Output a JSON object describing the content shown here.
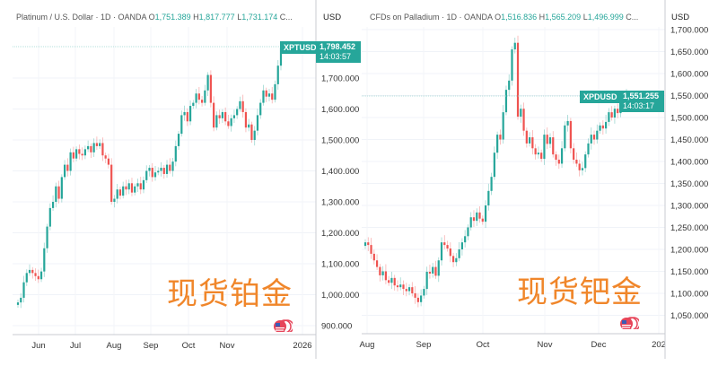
{
  "colors": {
    "up": "#26a69a",
    "down": "#ef5350",
    "price_line": "#9fd8d2",
    "overlay_text": "#f0862a"
  },
  "chart_data": [
    {
      "type": "candlestick",
      "header": {
        "symbol": "Platinum / U.S. Dollar · 1D · OANDA",
        "o_label": "O",
        "open": "1,751.389",
        "h_label": "H",
        "high": "1,817.777",
        "l_label": "L",
        "low": "1,731.174",
        "c_label": "C..."
      },
      "currency": "USD",
      "ticker": "XPTUSD",
      "last_price": "1,798.452",
      "countdown": "14:03:57",
      "overlay_text": "现货铂金",
      "y_ticks": [
        "1,700.000",
        "1,600.000",
        "1,500.000",
        "1,400.000",
        "1,300.000",
        "1,200.000",
        "1,100.000",
        "1,000.000",
        "900.000"
      ],
      "y_tick_values": [
        1700,
        1600,
        1500,
        1400,
        1300,
        1200,
        1100,
        1000,
        900
      ],
      "x_ticks": [
        "Jun",
        "Jul",
        "Aug",
        "Sep",
        "Oct",
        "Nov",
        "2026"
      ],
      "closes": [
        975,
        990,
        1040,
        1070,
        1080,
        1070,
        1060,
        1050,
        1075,
        1150,
        1220,
        1280,
        1300,
        1350,
        1310,
        1380,
        1420,
        1400,
        1460,
        1440,
        1470,
        1455,
        1450,
        1470,
        1480,
        1460,
        1490,
        1480,
        1490,
        1450,
        1440,
        1420,
        1300,
        1310,
        1340,
        1320,
        1350,
        1340,
        1360,
        1330,
        1350,
        1360,
        1340,
        1370,
        1400,
        1410,
        1380,
        1395,
        1400,
        1410,
        1390,
        1420,
        1400,
        1430,
        1480,
        1520,
        1580,
        1590,
        1560,
        1610,
        1620,
        1650,
        1630,
        1620,
        1660,
        1710,
        1620,
        1540,
        1580,
        1570,
        1590,
        1560,
        1545,
        1570,
        1580,
        1600,
        1625,
        1590,
        1540,
        1550,
        1500,
        1530,
        1580,
        1620,
        1660,
        1640,
        1650,
        1630,
        1680,
        1740,
        1798
      ]
    },
    {
      "type": "candlestick",
      "header": {
        "symbol": "CFDs on Palladium · 1D · OANDA",
        "o_label": "O",
        "open": "1,516.836",
        "h_label": "H",
        "high": "1,565.209",
        "l_label": "L",
        "low": "1,496.999",
        "c_label": "C..."
      },
      "currency": "USD",
      "ticker": "XPDUSD",
      "last_price": "1,551.255",
      "countdown": "14:03:17",
      "overlay_text": "现货钯金",
      "y_ticks": [
        "1,700.000",
        "1,650.000",
        "1,600.000",
        "1,550.000",
        "1,500.000",
        "1,450.000",
        "1,400.000",
        "1,350.000",
        "1,300.000",
        "1,250.000",
        "1,200.000",
        "1,150.000",
        "1,100.000",
        "1,050.000"
      ],
      "y_tick_values": [
        1700,
        1650,
        1600,
        1550,
        1500,
        1450,
        1400,
        1350,
        1300,
        1250,
        1200,
        1150,
        1100,
        1050
      ],
      "x_ticks": [
        "Aug",
        "Sep",
        "Oct",
        "Nov",
        "Dec",
        "202"
      ],
      "closes": [
        1216,
        1210,
        1190,
        1175,
        1160,
        1141,
        1150,
        1130,
        1124,
        1135,
        1118,
        1114,
        1120,
        1110,
        1105,
        1114,
        1100,
        1090,
        1080,
        1095,
        1110,
        1149,
        1145,
        1160,
        1140,
        1175,
        1216,
        1210,
        1202,
        1185,
        1171,
        1180,
        1200,
        1216,
        1230,
        1250,
        1273,
        1265,
        1284,
        1270,
        1263,
        1300,
        1333,
        1365,
        1420,
        1461,
        1450,
        1512,
        1563,
        1584,
        1655,
        1670,
        1502,
        1520,
        1470,
        1441,
        1455,
        1430,
        1416,
        1420,
        1406,
        1461,
        1440,
        1455,
        1416,
        1404,
        1395,
        1430,
        1482,
        1492,
        1430,
        1404,
        1395,
        1380,
        1385,
        1416,
        1441,
        1461,
        1450,
        1470,
        1482,
        1475,
        1490,
        1512,
        1500,
        1520,
        1510,
        1530,
        1549,
        1551
      ]
    }
  ]
}
